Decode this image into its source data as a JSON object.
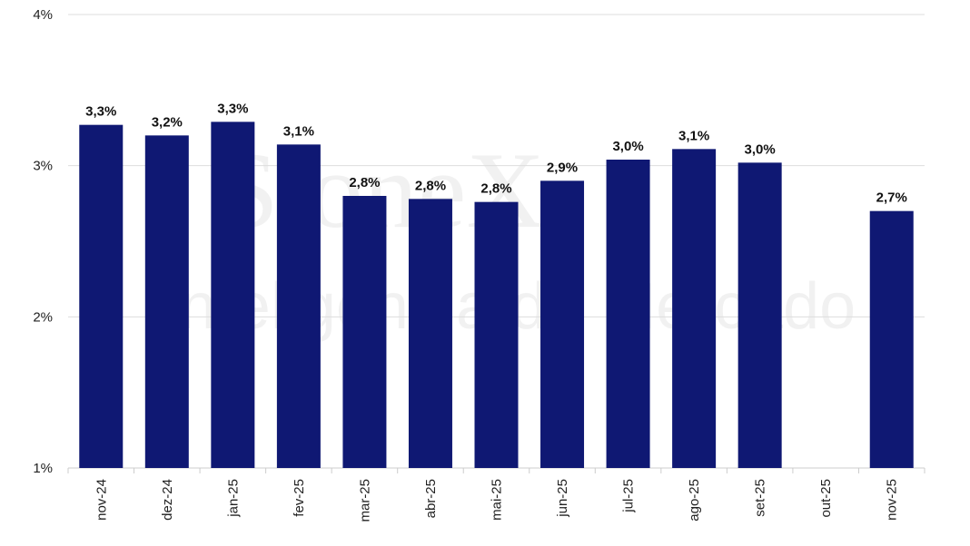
{
  "chart_data": {
    "type": "bar",
    "watermark": [
      "StoneX",
      "Inteligência de Mercado"
    ],
    "categories": [
      "nov-24",
      "dez-24",
      "jan-25",
      "fev-25",
      "mar-25",
      "abr-25",
      "mai-25",
      "jun-25",
      "jul-25",
      "ago-25",
      "set-25",
      "out-25",
      "nov-25"
    ],
    "values": [
      3.27,
      3.2,
      3.29,
      3.14,
      2.8,
      2.78,
      2.76,
      2.9,
      3.04,
      3.11,
      3.02,
      null,
      2.7
    ],
    "value_labels": [
      "3,3%",
      "3,2%",
      "3,3%",
      "3,1%",
      "2,8%",
      "2,8%",
      "2,8%",
      "2,9%",
      "3,0%",
      "3,1%",
      "3,0%",
      null,
      "2,7%"
    ],
    "color": "#0f1873",
    "ylim": [
      1,
      4
    ],
    "yticks": [
      {
        "value": 1,
        "label": "1%"
      },
      {
        "value": 2,
        "label": "2%"
      },
      {
        "value": 3,
        "label": "3%"
      },
      {
        "value": 4,
        "label": "4%"
      }
    ],
    "grid": true
  }
}
